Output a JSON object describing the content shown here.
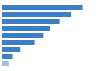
{
  "chart_data": {
    "type": "bar",
    "orientation": "horizontal",
    "categories": [
      null,
      null,
      null,
      null,
      null,
      null,
      null,
      null,
      null
    ],
    "values": [
      84,
      72,
      60,
      50,
      43,
      34,
      19,
      11,
      7
    ],
    "colors": [
      "#3B7FC4",
      "#3B7FC4",
      "#3B7FC4",
      "#3B7FC4",
      "#3B7FC4",
      "#3B7FC4",
      "#3B7FC4",
      "#3B7FC4",
      "#9DBFE0"
    ],
    "xlim": [
      0,
      100
    ],
    "tick_labels": false
  }
}
